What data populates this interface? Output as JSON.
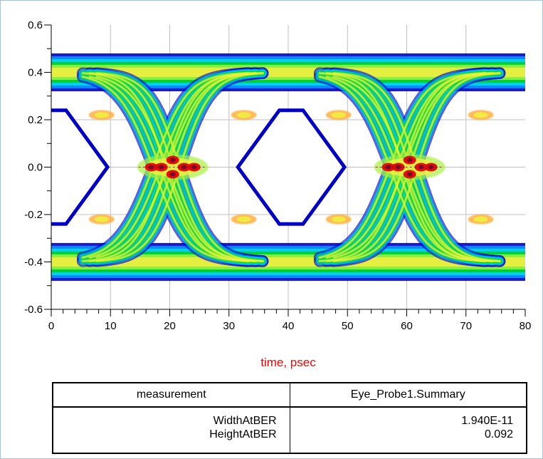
{
  "chart_data": {
    "type": "heatmap",
    "subtype": "eye-diagram",
    "xlabel": "time, psec",
    "xlim": [
      0,
      80
    ],
    "ylim": [
      -0.6,
      0.6
    ],
    "x_ticks": [
      0,
      10,
      20,
      30,
      40,
      50,
      60,
      70,
      80
    ],
    "y_ticks": [
      -0.6,
      -0.4,
      -0.2,
      0.0,
      0.2,
      0.4,
      0.6
    ],
    "y_tick_labels": [
      "-0.6",
      "-0.4",
      "-0.2",
      "0.0",
      "0.2",
      "0.4",
      "0.6"
    ],
    "grid": true,
    "signal_levels": [
      -0.4,
      0.4
    ],
    "crossing_times": [
      20.5,
      60.5
    ],
    "crossing_level": 0.0,
    "unit_interval": 40,
    "density_colors": [
      "#0000c8",
      "#00a0ff",
      "#00e4e4",
      "#00d000",
      "#a8f040",
      "#f0f040",
      "#ffb040",
      "#e80000",
      "#700030"
    ]
  },
  "table": {
    "headers": [
      "measurement",
      "Eye_Probe1.Summary"
    ],
    "names": [
      "WidthAtBER",
      "HeightAtBER"
    ],
    "values": [
      "1.940E-11",
      "0.092"
    ]
  },
  "colors": {
    "axis_label": "#ff0000",
    "grid": "#c0c0c0",
    "frame_border": "#a9c2d8"
  }
}
